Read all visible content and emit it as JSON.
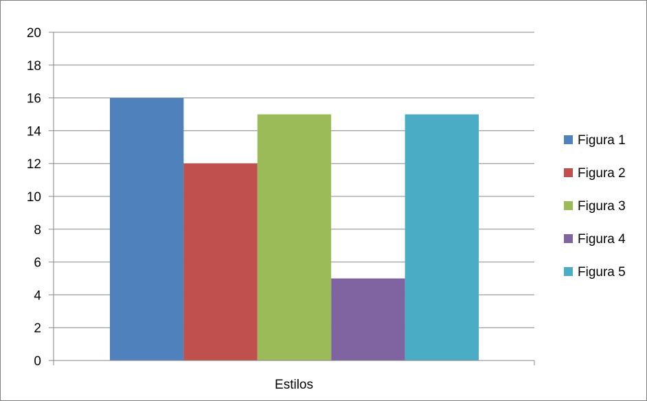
{
  "chart_data": {
    "type": "bar",
    "categories": [
      "Estilos"
    ],
    "series": [
      {
        "name": "Figura 1",
        "values": [
          16
        ],
        "color": "#4F81BD"
      },
      {
        "name": "Figura 2",
        "values": [
          12
        ],
        "color": "#C0504D"
      },
      {
        "name": "Figura 3",
        "values": [
          15
        ],
        "color": "#9BBB59"
      },
      {
        "name": "Figura 4",
        "values": [
          5
        ],
        "color": "#8064A2"
      },
      {
        "name": "Figura 5",
        "values": [
          15
        ],
        "color": "#4BACC6"
      }
    ],
    "ylim": [
      0,
      20
    ],
    "yticks": [
      "0",
      "2",
      "4",
      "6",
      "8",
      "10",
      "12",
      "14",
      "16",
      "18",
      "20"
    ],
    "grid": true,
    "legend_position": "right"
  }
}
